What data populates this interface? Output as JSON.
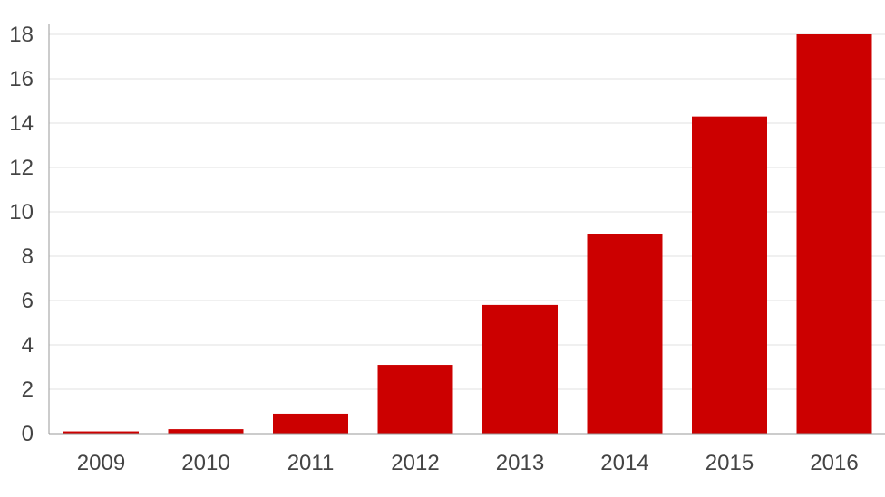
{
  "chart_data": {
    "type": "bar",
    "title": "",
    "xlabel": "",
    "ylabel": "",
    "categories": [
      "2009",
      "2010",
      "2011",
      "2012",
      "2013",
      "2014",
      "2015",
      "2016"
    ],
    "values": [
      0.1,
      0.2,
      0.9,
      3.1,
      5.8,
      9.0,
      14.3,
      18.0
    ],
    "ylim": [
      0,
      18
    ],
    "yticks": [
      0,
      2,
      4,
      6,
      8,
      10,
      12,
      14,
      16,
      18
    ],
    "grid": true,
    "legend": "none",
    "bar_color": "#cc0000"
  }
}
